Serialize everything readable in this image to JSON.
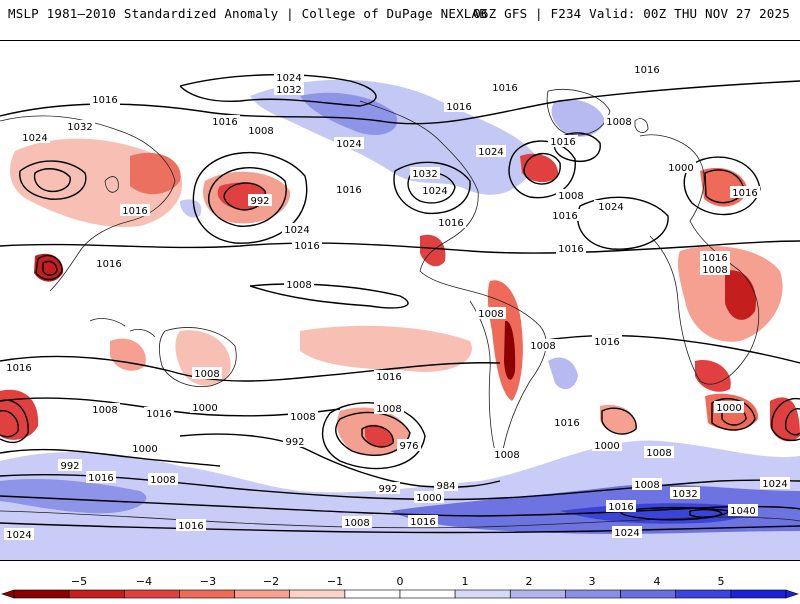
{
  "header": {
    "left_title": "MSLP 1981–2010 Standardized Anomaly | College of DuPage NEXLAB",
    "right_title": "06Z GFS | F234 Valid: 00Z THU NOV 27 2025"
  },
  "map": {
    "projection": "global cylindrical equidistant",
    "field": "mean sea level pressure (hPa) with standardized anomaly shading",
    "isobar_labels": [
      "1024",
      "1032",
      "1016",
      "1016",
      "1024",
      "1032",
      "1016",
      "1008",
      "1024",
      "992",
      "1016",
      "1024",
      "1016",
      "1016",
      "1016",
      "1016",
      "1016",
      "1024",
      "1032",
      "1024",
      "1016",
      "1024",
      "1016",
      "1008",
      "1016",
      "1016",
      "1008",
      "1008",
      "1008",
      "1016",
      "1008",
      "1024",
      "1016",
      "1000",
      "1008",
      "1016",
      "1016",
      "1016",
      "1016",
      "1016",
      "1008",
      "1008",
      "1016",
      "1008",
      "1000",
      "1008",
      "976",
      "992",
      "1000",
      "992",
      "1016",
      "1008",
      "1008",
      "984",
      "992",
      "1000",
      "1016",
      "1008",
      "1016",
      "1024",
      "1000",
      "1000",
      "1008",
      "1032",
      "1024",
      "1040",
      "1008",
      "1016",
      "1024"
    ]
  },
  "colorbar": {
    "ticks": [
      "−5",
      "−4",
      "−3",
      "−2",
      "−1",
      "0",
      "1",
      "2",
      "3",
      "4",
      "5"
    ],
    "colors": [
      "#8b0000",
      "#c41e1e",
      "#e04040",
      "#f06a5a",
      "#f5a090",
      "#fbd2c8",
      "#ffffff",
      "#ffffff",
      "#d7d9f7",
      "#b0b4ef",
      "#8a8fe6",
      "#6a6fe0",
      "#3b44e0",
      "#1a22d8"
    ]
  }
}
